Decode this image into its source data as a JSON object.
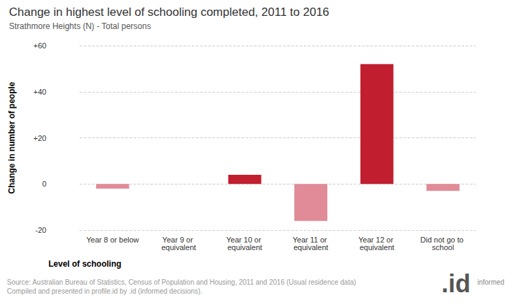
{
  "chart_data": {
    "type": "bar",
    "title": "Change in highest level of schooling completed, 2011 to 2016",
    "subtitle": "Strathmore Heights (N) - Total persons",
    "x_label": "Level of schooling",
    "y_label": "Change in number of people",
    "categories": [
      "Year 8 or below",
      "Year 9 or equivalent",
      "Year 10 or equivalent",
      "Year 11 or equivalent",
      "Year 12 or equivalent",
      "Did not go to school"
    ],
    "values": [
      -2,
      0,
      4,
      -16,
      52,
      -3
    ],
    "colors": [
      "#e08b97",
      "#e08b97",
      "#c11f2f",
      "#e08b97",
      "#c11f2f",
      "#e08b97"
    ],
    "ylim": [
      -20,
      60
    ],
    "yticks": [
      -20,
      0,
      {
        "value": 20,
        "label": "+20"
      },
      {
        "value": 40,
        "label": "+40"
      },
      {
        "value": 60,
        "label": "+60"
      }
    ],
    "grid": true,
    "annotations": [
      "Source: Australian Bureau of Statistics, Census of Population and Housing, 2011 and 2016 (Usual residence data)",
      "Compiled and presented in profile.id by .id (informed decisions)."
    ],
    "logo": [
      ".id",
      "informed"
    ]
  }
}
